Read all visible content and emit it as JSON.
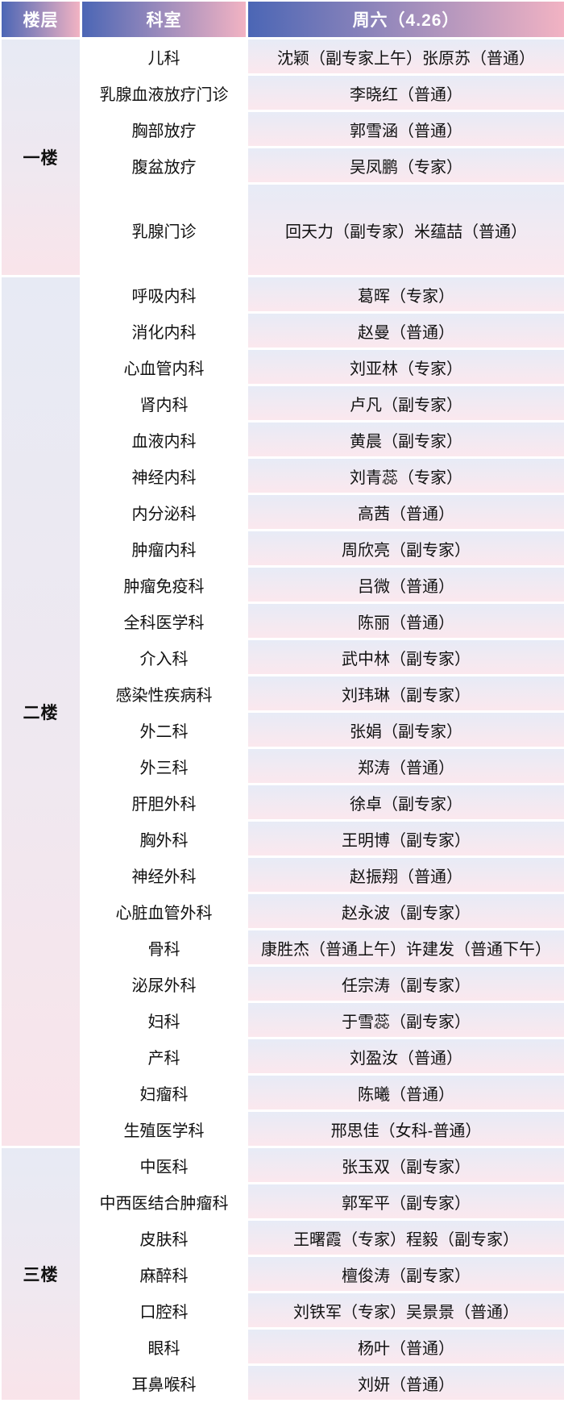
{
  "table": {
    "columns": [
      "楼层",
      "科室",
      "周六（4.26）"
    ],
    "floors": [
      {
        "name": "一楼",
        "rows": [
          {
            "dept": "儿科",
            "schedule": "沈颖（副专家上午）张原苏（普通）"
          },
          {
            "dept": "乳腺血液放疗门诊",
            "schedule": "李晓红（普通）"
          },
          {
            "dept": "胸部放疗",
            "schedule": "郭雪涵（普通）"
          },
          {
            "dept": "腹盆放疗",
            "schedule": "吴凤鹏（专家）"
          },
          {
            "dept": "乳腺门诊",
            "schedule": "回天力（副专家）米蕴喆（普通）",
            "tall": true
          }
        ]
      },
      {
        "name": "二楼",
        "rows": [
          {
            "dept": "呼吸内科",
            "schedule": "葛晖（专家）"
          },
          {
            "dept": "消化内科",
            "schedule": "赵曼（普通）"
          },
          {
            "dept": "心血管内科",
            "schedule": "刘亚林（专家）"
          },
          {
            "dept": "肾内科",
            "schedule": "卢凡（副专家）"
          },
          {
            "dept": "血液内科",
            "schedule": "黄晨（副专家）"
          },
          {
            "dept": "神经内科",
            "schedule": "刘青蕊（专家）"
          },
          {
            "dept": "内分泌科",
            "schedule": "高茜（普通）"
          },
          {
            "dept": "肿瘤内科",
            "schedule": "周欣亮（副专家）"
          },
          {
            "dept": "肿瘤免疫科",
            "schedule": "吕微（普通）"
          },
          {
            "dept": "全科医学科",
            "schedule": "陈丽（普通）"
          },
          {
            "dept": "介入科",
            "schedule": "武中林（副专家）"
          },
          {
            "dept": "感染性疾病科",
            "schedule": "刘玮琳（副专家）"
          },
          {
            "dept": "外二科",
            "schedule": "张娟（副专家）"
          },
          {
            "dept": "外三科",
            "schedule": "郑涛（普通）"
          },
          {
            "dept": "肝胆外科",
            "schedule": "徐卓（副专家）"
          },
          {
            "dept": "胸外科",
            "schedule": "王明博（副专家）"
          },
          {
            "dept": "神经外科",
            "schedule": "赵振翔（普通）"
          },
          {
            "dept": "心脏血管外科",
            "schedule": "赵永波（副专家）"
          },
          {
            "dept": "骨科",
            "schedule": "康胜杰（普通上午）许建发（普通下午）"
          },
          {
            "dept": "泌尿外科",
            "schedule": "任宗涛（副专家）"
          },
          {
            "dept": "妇科",
            "schedule": "于雪蕊（副专家）"
          },
          {
            "dept": "产科",
            "schedule": "刘盈汝（普通）"
          },
          {
            "dept": "妇瘤科",
            "schedule": "陈曦（普通）"
          },
          {
            "dept": "生殖医学科",
            "schedule": "邢思佳（女科-普通）"
          }
        ]
      },
      {
        "name": "三楼",
        "rows": [
          {
            "dept": "中医科",
            "schedule": "张玉双（副专家）"
          },
          {
            "dept": "中西医结合肿瘤科",
            "schedule": "郭军平（副专家）"
          },
          {
            "dept": "皮肤科",
            "schedule": "王曙霞（专家）程毅（副专家）"
          },
          {
            "dept": "麻醉科",
            "schedule": "檀俊涛（副专家）"
          },
          {
            "dept": "口腔科",
            "schedule": "刘铁军（专家）吴景景（普通）"
          },
          {
            "dept": "眼科",
            "schedule": "杨叶（普通）"
          },
          {
            "dept": "耳鼻喉科",
            "schedule": "刘妍（普通）"
          }
        ]
      }
    ]
  },
  "colors": {
    "header_gradient_start": "#4B66B5",
    "header_gradient_end": "#F2B3C3",
    "row_gradient_top": "#E7EBF6",
    "row_gradient_bottom": "#FBE8EE",
    "floor_gradient_top": "#E7EAF4",
    "floor_gradient_bottom": "#F9E4EA",
    "text": "#111111",
    "header_text": "#FFFFFF"
  }
}
